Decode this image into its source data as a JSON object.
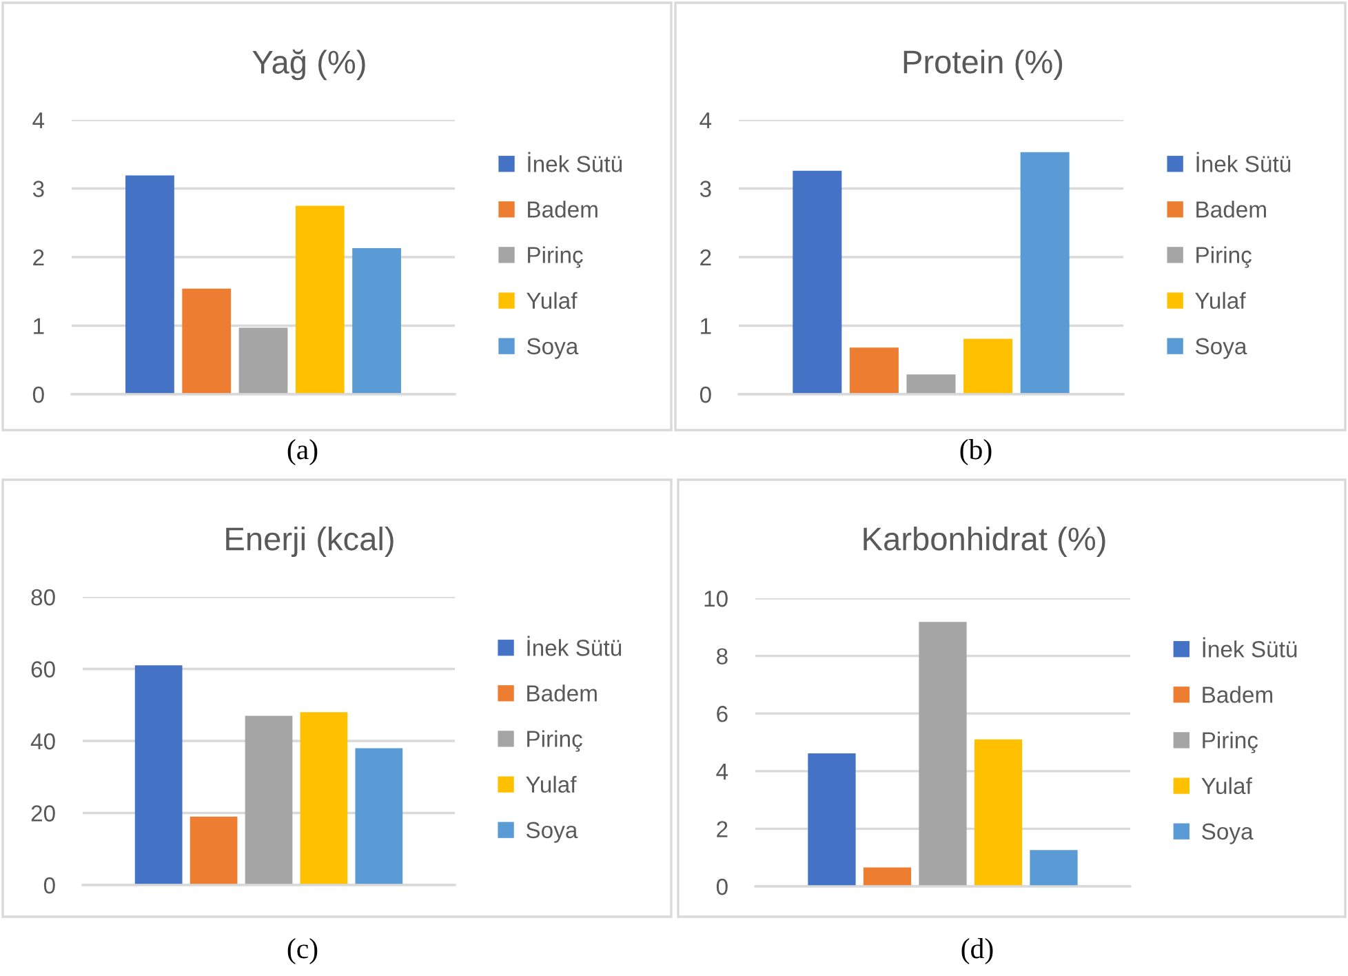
{
  "chart_data": [
    {
      "type": "bar",
      "title": "Yağ (%)",
      "categories": [
        null
      ],
      "series": [
        {
          "name": "İnek Sütü",
          "color": "#4472c4",
          "values": [
            3.19
          ]
        },
        {
          "name": "Badem",
          "color": "#ed7d31",
          "values": [
            1.54
          ]
        },
        {
          "name": "Pirinç",
          "color": "#a5a5a5",
          "values": [
            0.97
          ]
        },
        {
          "name": "Yulaf",
          "color": "#ffc000",
          "values": [
            2.75
          ]
        },
        {
          "name": "Soya",
          "color": "#5b9bd5",
          "values": [
            2.13
          ]
        }
      ],
      "ylim": [
        0,
        4
      ],
      "yticks": [
        0,
        1,
        2,
        3,
        4
      ],
      "grid": "y",
      "legend": "right",
      "tick_labels": "y",
      "annotations": [
        "(a)"
      ]
    },
    {
      "type": "bar",
      "title": "Protein (%)",
      "categories": [
        null
      ],
      "series": [
        {
          "name": "İnek Sütü",
          "color": "#4472c4",
          "values": [
            3.26
          ]
        },
        {
          "name": "Badem",
          "color": "#ed7d31",
          "values": [
            0.68
          ]
        },
        {
          "name": "Pirinç",
          "color": "#a5a5a5",
          "values": [
            0.29
          ]
        },
        {
          "name": "Yulaf",
          "color": "#ffc000",
          "values": [
            0.81
          ]
        },
        {
          "name": "Soya",
          "color": "#5b9bd5",
          "values": [
            3.53
          ]
        }
      ],
      "ylim": [
        0,
        4
      ],
      "yticks": [
        0,
        1,
        2,
        3,
        4
      ],
      "grid": "y",
      "legend": "right",
      "tick_labels": "y",
      "annotations": [
        "(b)"
      ]
    },
    {
      "type": "bar",
      "title": "Enerji (kcal)",
      "categories": [
        null
      ],
      "series": [
        {
          "name": "İnek Sütü",
          "color": "#4472c4",
          "values": [
            61
          ]
        },
        {
          "name": "Badem",
          "color": "#ed7d31",
          "values": [
            19
          ]
        },
        {
          "name": "Pirinç",
          "color": "#a5a5a5",
          "values": [
            47
          ]
        },
        {
          "name": "Yulaf",
          "color": "#ffc000",
          "values": [
            48
          ]
        },
        {
          "name": "Soya",
          "color": "#5b9bd5",
          "values": [
            38
          ]
        }
      ],
      "ylim": [
        0,
        80
      ],
      "yticks": [
        0,
        20,
        40,
        60,
        80
      ],
      "grid": "y",
      "legend": "right",
      "tick_labels": "y",
      "annotations": [
        "(c)"
      ]
    },
    {
      "type": "bar",
      "title": "Karbonhidrat (%)",
      "categories": [
        null
      ],
      "series": [
        {
          "name": "İnek Sütü",
          "color": "#4472c4",
          "values": [
            4.62
          ]
        },
        {
          "name": "Badem",
          "color": "#ed7d31",
          "values": [
            0.66
          ]
        },
        {
          "name": "Pirinç",
          "color": "#a5a5a5",
          "values": [
            9.18
          ]
        },
        {
          "name": "Yulaf",
          "color": "#ffc000",
          "values": [
            5.1
          ]
        },
        {
          "name": "Soya",
          "color": "#5b9bd5",
          "values": [
            1.26
          ]
        }
      ],
      "ylim": [
        0,
        10
      ],
      "yticks": [
        0,
        2,
        4,
        6,
        8,
        10
      ],
      "grid": "y",
      "legend": "right",
      "tick_labels": "y",
      "annotations": [
        "(d)"
      ]
    }
  ]
}
